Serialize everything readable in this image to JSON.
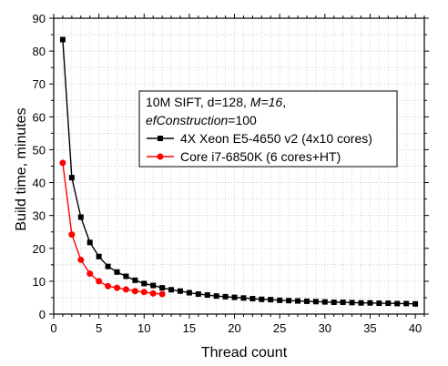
{
  "chart_data": {
    "type": "line",
    "xlabel": "Thread count",
    "ylabel": "Build time, minutes",
    "xlim": [
      0,
      41
    ],
    "ylim": [
      0,
      90
    ],
    "xticks": [
      0,
      5,
      10,
      15,
      20,
      25,
      30,
      35,
      40
    ],
    "yticks": [
      0,
      10,
      20,
      30,
      40,
      50,
      60,
      70,
      80,
      90
    ],
    "grid": true,
    "legend_position": "top-right",
    "legend_title_parts": [
      {
        "text": "10M SIFT, d=128, ",
        "italic": false
      },
      {
        "text": "M=16",
        "italic": true
      },
      {
        "text": ",",
        "italic": false
      }
    ],
    "legend_title_line2_parts": [
      {
        "text": "efConstruction",
        "italic": true
      },
      {
        "text": "=100",
        "italic": false
      }
    ],
    "series": [
      {
        "name": "4X Xeon E5-4650 v2 (4x10 cores)",
        "color": "#000000",
        "marker": "square",
        "x": [
          1,
          2,
          3,
          4,
          5,
          6,
          7,
          8,
          9,
          10,
          11,
          12,
          13,
          14,
          15,
          16,
          17,
          18,
          19,
          20,
          21,
          22,
          23,
          24,
          25,
          26,
          27,
          28,
          29,
          30,
          31,
          32,
          33,
          34,
          35,
          36,
          37,
          38,
          39,
          40
        ],
        "y": [
          83.5,
          41.5,
          29.5,
          21.8,
          17.5,
          14.5,
          12.8,
          11.5,
          10.3,
          9.3,
          8.7,
          8.0,
          7.4,
          7.0,
          6.5,
          6.1,
          5.8,
          5.5,
          5.3,
          5.1,
          4.9,
          4.7,
          4.5,
          4.4,
          4.2,
          4.1,
          4.0,
          3.9,
          3.8,
          3.7,
          3.6,
          3.6,
          3.5,
          3.4,
          3.4,
          3.3,
          3.3,
          3.2,
          3.2,
          3.1
        ]
      },
      {
        "name": "Core i7-6850K (6 cores+HT)",
        "color": "#ff0000",
        "marker": "circle",
        "x": [
          1,
          2,
          3,
          4,
          5,
          6,
          7,
          8,
          9,
          10,
          11,
          12
        ],
        "y": [
          46.0,
          24.2,
          16.5,
          12.3,
          10.0,
          8.5,
          8.0,
          7.5,
          7.0,
          6.7,
          6.3,
          6.1
        ]
      }
    ]
  }
}
